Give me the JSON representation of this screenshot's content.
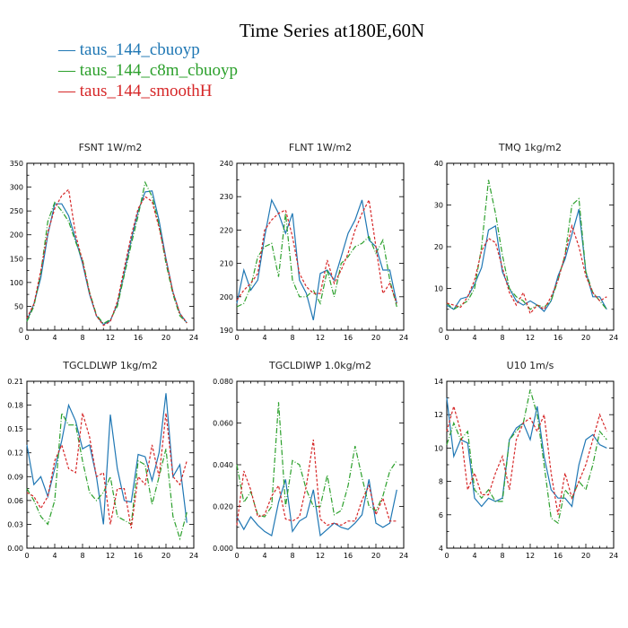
{
  "title": "Time Series at180E,60N",
  "legend": [
    {
      "label": "taus_144_cbuoyp",
      "color": "#1f77b4"
    },
    {
      "label": "taus_144_c8m_cbuoyp",
      "color": "#2ca02c"
    },
    {
      "label": "taus_144_smoothH",
      "color": "#d62728"
    }
  ],
  "chart_data": [
    {
      "type": "line",
      "title": "FSNT   1W/m2",
      "x": [
        0,
        1,
        2,
        3,
        4,
        5,
        6,
        7,
        8,
        9,
        10,
        11,
        12,
        13,
        14,
        15,
        16,
        17,
        18,
        19,
        20,
        21,
        22,
        23
      ],
      "xlim": [
        0,
        24
      ],
      "ylim": [
        0,
        350
      ],
      "xticks": [
        "0",
        "4",
        "8",
        "12",
        "16",
        "20",
        "24"
      ],
      "yticks": [
        "0",
        "50",
        "100",
        "150",
        "200",
        "250",
        "300",
        "350"
      ],
      "series": [
        {
          "name": "taus_144_cbuoyp",
          "values": [
            20,
            55,
            110,
            200,
            265,
            265,
            240,
            190,
            140,
            75,
            30,
            12,
            20,
            55,
            120,
            190,
            250,
            290,
            292,
            230,
            150,
            80,
            35,
            15
          ]
        },
        {
          "name": "taus_144_c8m_cbuoyp",
          "values": [
            18,
            50,
            120,
            228,
            268,
            250,
            228,
            185,
            148,
            80,
            32,
            14,
            22,
            50,
            115,
            180,
            240,
            310,
            280,
            220,
            140,
            75,
            30,
            15
          ]
        },
        {
          "name": "taus_144_smoothH",
          "values": [
            25,
            55,
            125,
            205,
            255,
            282,
            295,
            200,
            145,
            78,
            30,
            10,
            18,
            60,
            130,
            198,
            255,
            280,
            270,
            215,
            148,
            80,
            35,
            15
          ]
        }
      ]
    },
    {
      "type": "line",
      "title": "FLNT   1W/m2",
      "x": [
        0,
        1,
        2,
        3,
        4,
        5,
        6,
        7,
        8,
        9,
        10,
        11,
        12,
        13,
        14,
        15,
        16,
        17,
        18,
        19,
        20,
        21,
        22,
        23
      ],
      "xlim": [
        0,
        24
      ],
      "ylim": [
        190,
        240
      ],
      "xticks": [
        "0",
        "4",
        "8",
        "12",
        "16",
        "20",
        "24"
      ],
      "yticks": [
        "190",
        "200",
        "210",
        "220",
        "230",
        "240"
      ],
      "series": [
        {
          "name": "taus_144_cbuoyp",
          "values": [
            198,
            208,
            202,
            205,
            218,
            229,
            225,
            219,
            225,
            205,
            201,
            193,
            207,
            208,
            205,
            212,
            219,
            223,
            229,
            217,
            215,
            208,
            208,
            198
          ]
        },
        {
          "name": "taus_144_c8m_cbuoyp",
          "values": [
            197,
            198,
            203,
            212,
            215,
            216,
            206,
            225,
            205,
            200,
            200,
            202,
            198,
            208,
            200,
            210,
            212,
            215,
            216,
            218,
            213,
            217,
            205,
            197
          ]
        },
        {
          "name": "taus_144_smoothH",
          "values": [
            199,
            202,
            204,
            207,
            220,
            223,
            225,
            226,
            218,
            207,
            203,
            201,
            201,
            211,
            204,
            208,
            213,
            220,
            225,
            229,
            215,
            201,
            204,
            198
          ]
        }
      ]
    },
    {
      "type": "line",
      "title": "TMQ   1kg/m2",
      "x": [
        0,
        1,
        2,
        3,
        4,
        5,
        6,
        7,
        8,
        9,
        10,
        11,
        12,
        13,
        14,
        15,
        16,
        17,
        18,
        19,
        20,
        21,
        22,
        23
      ],
      "xlim": [
        0,
        24
      ],
      "ylim": [
        0,
        40
      ],
      "xticks": [
        "0",
        "4",
        "8",
        "12",
        "16",
        "20",
        "24"
      ],
      "yticks": [
        "0",
        "10",
        "20",
        "30",
        "40"
      ],
      "series": [
        {
          "name": "taus_144_cbuoyp",
          "values": [
            6,
            5,
            7.5,
            8,
            11,
            15,
            24,
            25,
            14,
            10,
            7,
            6,
            7,
            6,
            4.5,
            7,
            13,
            17,
            23,
            29,
            14,
            8,
            8,
            5
          ]
        },
        {
          "name": "taus_144_c8m_cbuoyp",
          "values": [
            6.5,
            5,
            6,
            7,
            10,
            20,
            36,
            28,
            18,
            10,
            8,
            7,
            5,
            6,
            5.5,
            7,
            12,
            18,
            30,
            31.5,
            14,
            9,
            7,
            5
          ]
        },
        {
          "name": "taus_144_smoothH",
          "values": [
            6.5,
            6,
            5.5,
            8,
            12,
            19,
            22,
            21,
            15,
            9,
            6,
            9,
            4,
            6,
            5,
            8,
            12,
            18,
            25,
            20,
            13,
            9,
            7,
            8
          ]
        }
      ]
    },
    {
      "type": "line",
      "title": "TGCLDLWP   1kg/m2",
      "x": [
        0,
        1,
        2,
        3,
        4,
        5,
        6,
        7,
        8,
        9,
        10,
        11,
        12,
        13,
        14,
        15,
        16,
        17,
        18,
        19,
        20,
        21,
        22,
        23
      ],
      "xlim": [
        0,
        24
      ],
      "ylim": [
        0,
        0.21
      ],
      "xticks": [
        "0",
        "4",
        "8",
        "12",
        "16",
        "20",
        "24"
      ],
      "yticks": [
        "0.00",
        "0.03",
        "0.06",
        "0.09",
        "0.12",
        "0.15",
        "0.18",
        "0.21"
      ],
      "series": [
        {
          "name": "taus_144_cbuoyp",
          "values": [
            0.13,
            0.08,
            0.09,
            0.065,
            0.1,
            0.135,
            0.18,
            0.16,
            0.125,
            0.13,
            0.09,
            0.03,
            0.168,
            0.1,
            0.06,
            0.058,
            0.118,
            0.115,
            0.085,
            0.12,
            0.195,
            0.09,
            0.105,
            0.032
          ]
        },
        {
          "name": "taus_144_c8m_cbuoyp",
          "values": [
            0.075,
            0.06,
            0.04,
            0.03,
            0.06,
            0.17,
            0.155,
            0.155,
            0.11,
            0.07,
            0.06,
            0.07,
            0.09,
            0.04,
            0.035,
            0.03,
            0.11,
            0.105,
            0.055,
            0.09,
            0.125,
            0.04,
            0.012,
            0.045
          ]
        },
        {
          "name": "taus_144_smoothH",
          "values": [
            0.07,
            0.065,
            0.05,
            0.065,
            0.11,
            0.13,
            0.1,
            0.095,
            0.17,
            0.14,
            0.09,
            0.095,
            0.03,
            0.075,
            0.075,
            0.025,
            0.09,
            0.08,
            0.13,
            0.09,
            0.17,
            0.09,
            0.08,
            0.11
          ]
        }
      ]
    },
    {
      "type": "line",
      "title": "TGCLDIWP   1.0kg/m2",
      "x": [
        0,
        1,
        2,
        3,
        4,
        5,
        6,
        7,
        8,
        9,
        10,
        11,
        12,
        13,
        14,
        15,
        16,
        17,
        18,
        19,
        20,
        21,
        22,
        23
      ],
      "xlim": [
        0,
        24
      ],
      "ylim": [
        0,
        0.08
      ],
      "xticks": [
        "0",
        "4",
        "8",
        "12",
        "16",
        "20",
        "24"
      ],
      "yticks": [
        "0.000",
        "0.020",
        "0.040",
        "0.060",
        "0.080"
      ],
      "series": [
        {
          "name": "taus_144_cbuoyp",
          "values": [
            0.015,
            0.009,
            0.015,
            0.011,
            0.008,
            0.006,
            0.022,
            0.033,
            0.008,
            0.013,
            0.015,
            0.028,
            0.006,
            0.009,
            0.012,
            0.01,
            0.009,
            0.012,
            0.016,
            0.033,
            0.012,
            0.01,
            0.012,
            0.028
          ]
        },
        {
          "name": "taus_144_c8m_cbuoyp",
          "values": [
            0.04,
            0.022,
            0.027,
            0.016,
            0.015,
            0.02,
            0.07,
            0.02,
            0.042,
            0.04,
            0.028,
            0.02,
            0.02,
            0.035,
            0.016,
            0.018,
            0.03,
            0.049,
            0.034,
            0.02,
            0.018,
            0.025,
            0.037,
            0.042
          ]
        },
        {
          "name": "taus_144_smoothH",
          "values": [
            0.011,
            0.037,
            0.028,
            0.015,
            0.016,
            0.025,
            0.03,
            0.014,
            0.013,
            0.015,
            0.03,
            0.052,
            0.014,
            0.011,
            0.012,
            0.011,
            0.013,
            0.013,
            0.023,
            0.03,
            0.016,
            0.024,
            0.013,
            0.013
          ]
        }
      ]
    },
    {
      "type": "line",
      "title": "U10   1m/s",
      "x": [
        0,
        1,
        2,
        3,
        4,
        5,
        6,
        7,
        8,
        9,
        10,
        11,
        12,
        13,
        14,
        15,
        16,
        17,
        18,
        19,
        20,
        21,
        22,
        23
      ],
      "xlim": [
        0,
        24
      ],
      "ylim": [
        4,
        14
      ],
      "xticks": [
        "0",
        "4",
        "8",
        "12",
        "16",
        "20",
        "24"
      ],
      "yticks": [
        "4",
        "6",
        "8",
        "10",
        "12",
        "14"
      ],
      "series": [
        {
          "name": "taus_144_cbuoyp",
          "values": [
            13,
            9.5,
            10.5,
            10.3,
            7,
            6.5,
            7,
            6.8,
            7,
            10.5,
            11.2,
            11.5,
            10.5,
            12.5,
            9.5,
            7.5,
            7,
            7,
            6.5,
            9,
            10.5,
            10.8,
            10.2,
            10
          ]
        },
        {
          "name": "taus_144_c8m_cbuoyp",
          "values": [
            10.2,
            11.5,
            10.5,
            11,
            7.5,
            7,
            7.5,
            6.8,
            6.8,
            10.5,
            11,
            11.5,
            13.5,
            12,
            9,
            5.8,
            5.5,
            7.5,
            7,
            8,
            7.5,
            9,
            11,
            10.5
          ]
        },
        {
          "name": "taus_144_smoothH",
          "values": [
            11,
            12.5,
            11,
            7.5,
            8.5,
            7.2,
            7.2,
            8.5,
            9.5,
            7.5,
            10.5,
            11.5,
            11.8,
            11,
            12,
            8.5,
            6,
            8.5,
            7,
            8,
            9,
            10.5,
            12,
            11
          ]
        }
      ]
    }
  ]
}
